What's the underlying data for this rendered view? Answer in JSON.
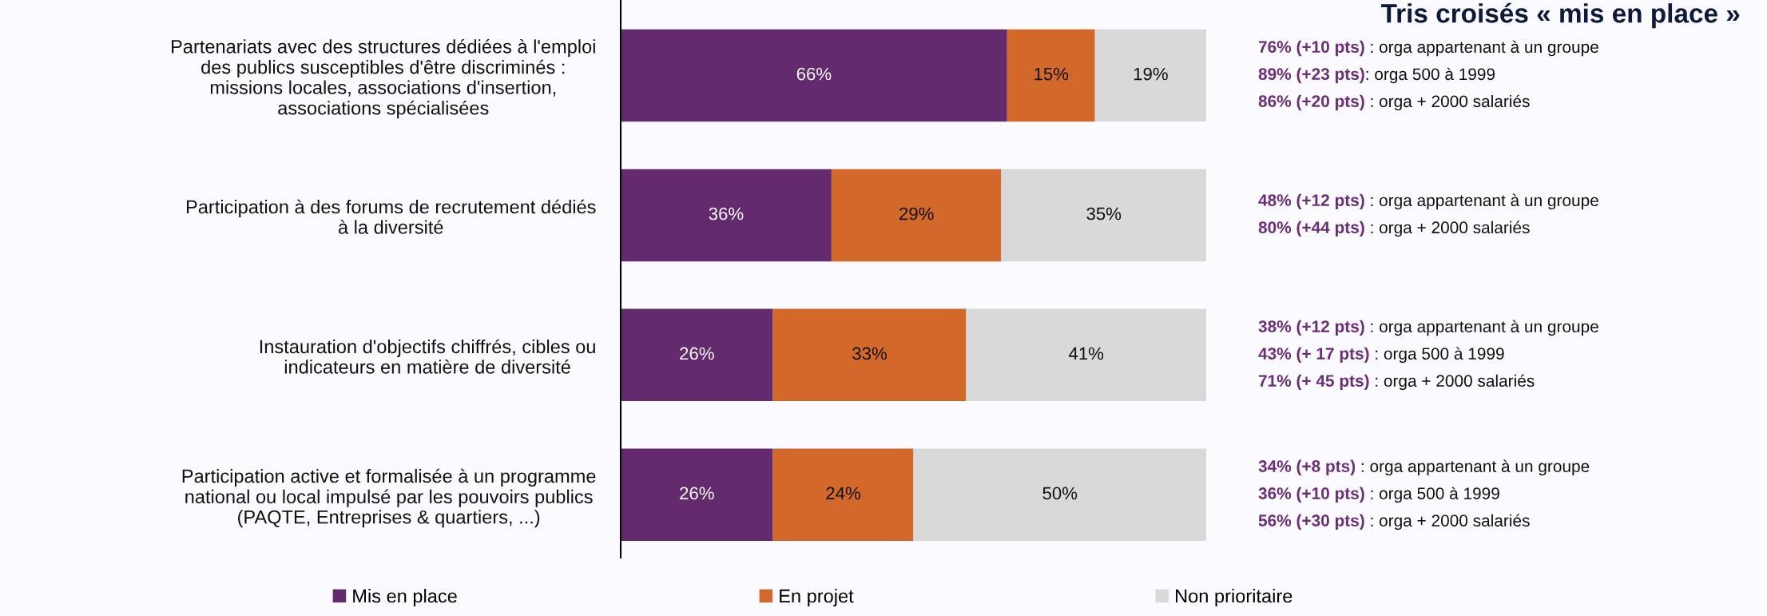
{
  "chart_data": {
    "type": "bar",
    "orientation": "horizontal",
    "stacked": true,
    "title": "Tris croisés « mis en place »",
    "categories": [
      "Partenariats avec des structures dédiées à l'emploi\ndes publics susceptibles d'être discriminés :\nmissions locales, associations d'insertion,\nassociations spécialisées",
      "Participation à des forums de recrutement dédiés\nà la diversité",
      "Instauration d'objectifs chiffrés, cibles ou\nindicateurs en matière de diversité",
      "Participation active et formalisée à un programme\nnational ou local impulsé par les pouvoirs publics\n(PAQTE, Entreprises & quartiers, ...)"
    ],
    "series": [
      {
        "name": "Mis en place",
        "color": "#642a6e",
        "values": [
          66,
          36,
          26,
          26
        ],
        "value_labels": [
          "66%",
          "36%",
          "26%",
          "26%"
        ]
      },
      {
        "name": "En projet",
        "color": "#d2692a",
        "values": [
          15,
          29,
          33,
          24
        ],
        "value_labels": [
          "15%",
          "29%",
          "33%",
          "24%"
        ]
      },
      {
        "name": "Non prioritaire",
        "color": "#d9d9d9",
        "values": [
          19,
          35,
          41,
          50
        ],
        "value_labels": [
          "19%",
          "35%",
          "41%",
          "50%"
        ]
      }
    ],
    "tick_labels": "y",
    "grid": false,
    "legend": "bottom",
    "annotations": [
      "76% (+10 pts) : orga appartenant à un groupe\n89% (+23 pts): orga 500 à 1999\n86% (+20 pts) : orga + 2000 salariés",
      "48% (+12 pts) : orga appartenant à un groupe\n80% (+44 pts) : orga + 2000 salariés",
      "38% (+12 pts) : orga appartenant à un groupe\n43% (+ 17 pts) : orga 500 à 1999\n71% (+ 45 pts) : orga + 2000 salariés",
      "34% (+8 pts) : orga appartenant à un groupe\n36% (+10 pts) : orga 500 à 1999\n56% (+30 pts) : orga + 2000 salariés"
    ]
  }
}
